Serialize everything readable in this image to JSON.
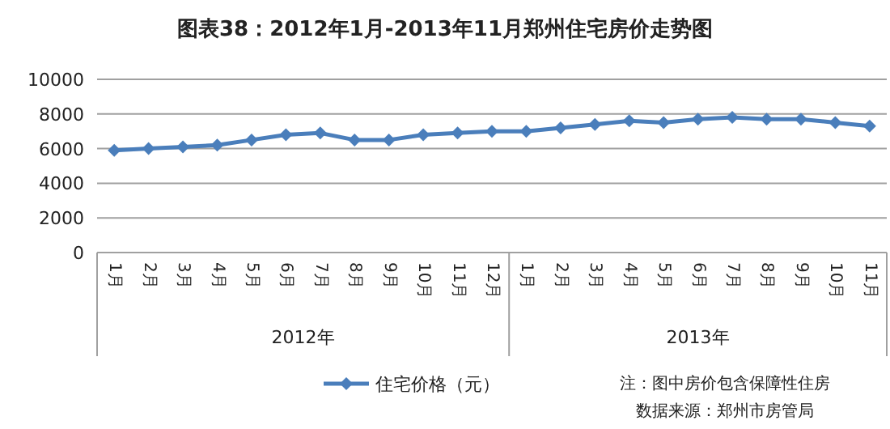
{
  "chart_data": {
    "type": "line",
    "title": "图表38：2012年1月-2013年11月郑州住宅房价走势图",
    "categories": [
      "1月",
      "2月",
      "3月",
      "4月",
      "5月",
      "6月",
      "7月",
      "8月",
      "9月",
      "10月",
      "11月",
      "12月",
      "1月",
      "2月",
      "3月",
      "4月",
      "5月",
      "6月",
      "7月",
      "8月",
      "9月",
      "10月",
      "11月"
    ],
    "series": [
      {
        "name": "住宅价格（元）",
        "color": "#4a7ebb",
        "values": [
          5900,
          6000,
          6100,
          6200,
          6500,
          6800,
          6900,
          6500,
          6500,
          6800,
          6900,
          7000,
          7000,
          7200,
          7400,
          7600,
          7500,
          7700,
          7800,
          7700,
          7700,
          7500,
          7300
        ]
      }
    ],
    "ylim": [
      0,
      10000
    ],
    "yticks": [
      0,
      2000,
      4000,
      6000,
      8000,
      10000
    ],
    "grid": "y",
    "legend": "bottom",
    "marker": "diamond",
    "line_style": "solid",
    "annotations": [
      "2012年",
      "2013年",
      "注：图中房价包含保障性住房",
      "数据来源：郑州市房管局"
    ]
  }
}
